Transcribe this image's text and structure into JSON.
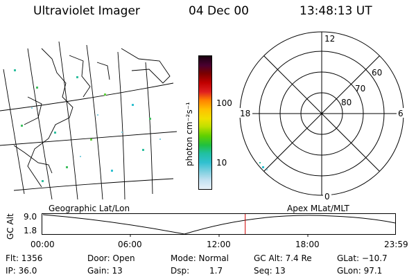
{
  "header": {
    "instrument": "Ultraviolet Imager",
    "date": "04 Dec 00",
    "time": "13:48:13 UT"
  },
  "colorbar": {
    "unit_label": "photon cm⁻²s⁻¹",
    "ticks": [
      "100",
      "10"
    ],
    "colors": [
      "#1a0010",
      "#4a0030",
      "#7a0000",
      "#c00000",
      "#e02020",
      "#ff8000",
      "#ffc000",
      "#f0e000",
      "#c0e000",
      "#60d000",
      "#20c040",
      "#20c0a0",
      "#30c0d0",
      "#80d0e0",
      "#c0e0f0",
      "#e8f0f8"
    ]
  },
  "polar_plot": {
    "mlt_labels": [
      "12",
      "18",
      "6",
      "0"
    ],
    "lat_labels": [
      "60",
      "70",
      "80"
    ]
  },
  "timeline": {
    "y_axis_label": "GC Alt",
    "y_ticks": [
      "9.0",
      "1.8"
    ],
    "left_label": "Geographic Lat/Lon",
    "right_label": "Apex MLat/MLT",
    "x_ticks": [
      "00:00",
      "06:00",
      "12:00",
      "18:00",
      "23:59"
    ],
    "current_time_fraction": 0.575
  },
  "info": {
    "flt": "Flt: 1356",
    "door": "Door: Open",
    "mode": "Mode: Normal",
    "gc_alt": "GC Alt: 7.4 Re",
    "glat": "GLat: −10.7",
    "ip": "IP: 36.0",
    "gain": "Gain: 13",
    "dsp_label": "Dsp:",
    "dsp_value": "1.7",
    "seq": "Seq: 13",
    "glon": "GLon:  97.1"
  }
}
